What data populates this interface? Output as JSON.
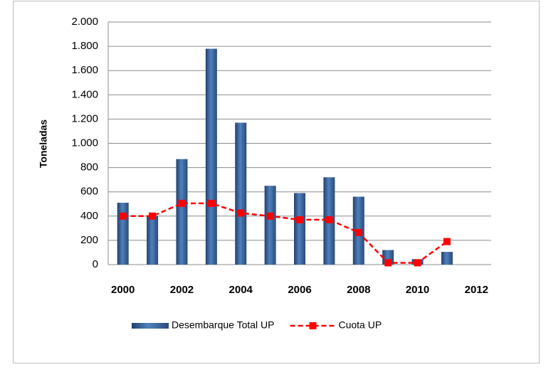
{
  "chart_data": {
    "type": "bar",
    "y_label": "Toneladas",
    "x": [
      2000,
      2001,
      2002,
      2003,
      2004,
      2005,
      2006,
      2007,
      2008,
      2009,
      2010,
      2011
    ],
    "series": [
      {
        "name": "Desembarque Total UP",
        "type": "bar",
        "color": "#4f81bd",
        "values": [
          510,
          400,
          870,
          1780,
          1170,
          650,
          590,
          720,
          560,
          120,
          45,
          105
        ]
      },
      {
        "name": "Cuota UP",
        "type": "line",
        "color": "#ff0000",
        "values": [
          400,
          400,
          505,
          505,
          425,
          400,
          370,
          370,
          265,
          15,
          15,
          190
        ]
      }
    ],
    "xlim": [
      1999.5,
      2012.5
    ],
    "xticks": [
      2000,
      2002,
      2004,
      2006,
      2008,
      2010,
      2012
    ],
    "ylim": [
      0,
      2000
    ],
    "yticks": [
      0,
      200,
      400,
      600,
      800,
      {
        "value": 1000,
        "label": "1.000"
      },
      {
        "value": 1200,
        "label": "1.200"
      },
      {
        "value": 1400,
        "label": "1.400"
      },
      {
        "value": 1600,
        "label": "1.600"
      },
      {
        "value": 1800,
        "label": "1.800"
      },
      {
        "value": 2000,
        "label": "2.000"
      }
    ],
    "grid": true
  }
}
